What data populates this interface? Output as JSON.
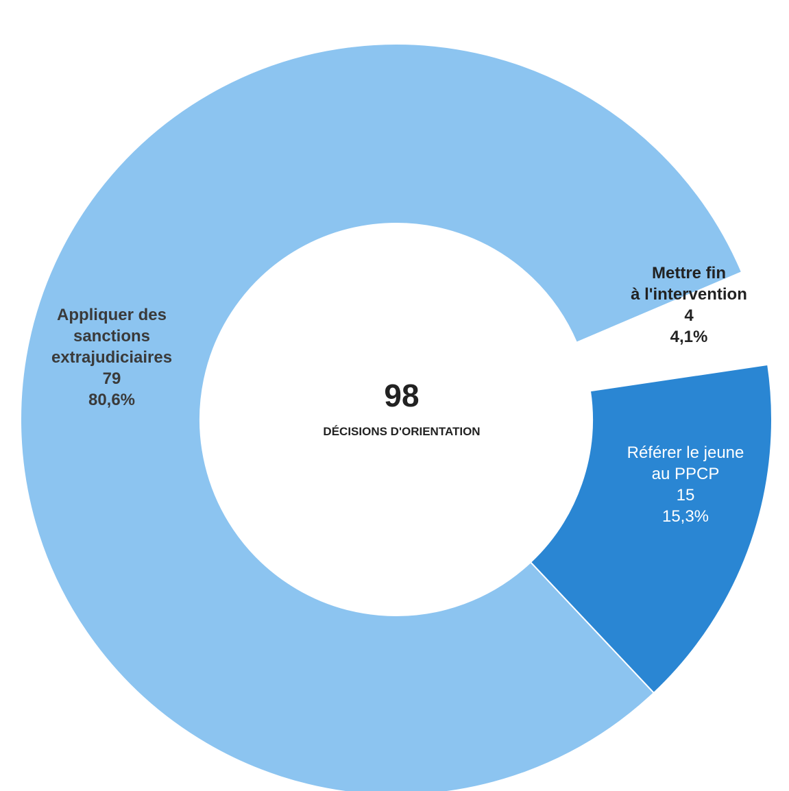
{
  "chart_data": {
    "type": "pie",
    "variant": "donut",
    "total": 98,
    "total_label": "DÉCISIONS D'ORIENTATION",
    "slices": [
      {
        "label_lines": [
          "Appliquer des",
          "sanctions",
          "extrajudiciaires"
        ],
        "value": 79,
        "value_text": "79",
        "percent_text": "80,6%",
        "color": "#8CC4F0"
      },
      {
        "label_lines": [
          "Mettre fin",
          "à l'intervention"
        ],
        "value": 4,
        "value_text": "4",
        "percent_text": "4,1%",
        "color": "#ffffff"
      },
      {
        "label_lines": [
          "Référer le jeune",
          "au PPCP"
        ],
        "value": 15,
        "value_text": "15",
        "percent_text": "15,3%",
        "color": "#2A86D3"
      }
    ]
  }
}
